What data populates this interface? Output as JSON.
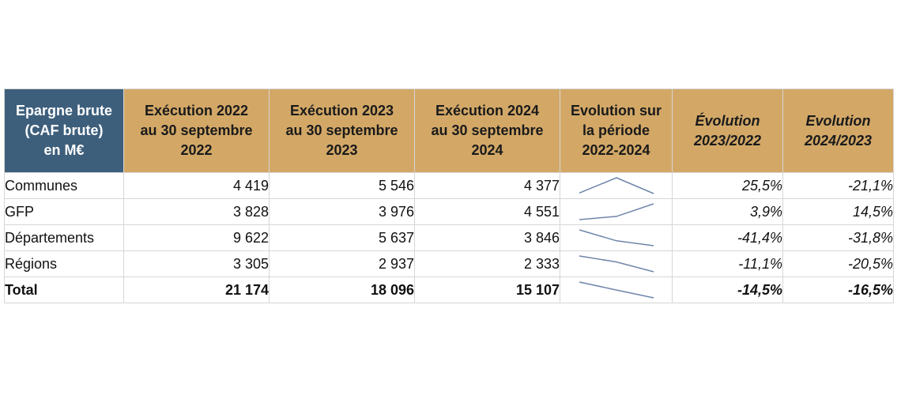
{
  "table": {
    "header_color": "#d3a867",
    "first_header_color": "#3d5f7c",
    "sparkline_color": "#6f86aa",
    "columns": [
      "Epargne brute\n(CAF brute)\nen M€",
      "Exécution 2022\nau 30 septembre\n2022",
      "Exécution 2023\nau 30 septembre\n2023",
      "Exécution 2024\nau 30 septembre\n2024",
      "Evolution sur\nla période\n2022-2024",
      "Évolution\n2023/2022",
      "Evolution\n2024/2023"
    ],
    "rows": [
      {
        "label": "Communes",
        "v2022": "4 419",
        "v2023": "5 546",
        "v2024": "4 377",
        "trend": [
          4419,
          5546,
          4377
        ],
        "evo_23_22": "25,5%",
        "evo_24_23": "-21,1%"
      },
      {
        "label": "GFP",
        "v2022": "3 828",
        "v2023": "3 976",
        "v2024": "4 551",
        "trend": [
          3828,
          3976,
          4551
        ],
        "evo_23_22": "3,9%",
        "evo_24_23": "14,5%"
      },
      {
        "label": "Départements",
        "v2022": "9 622",
        "v2023": "5 637",
        "v2024": "3 846",
        "trend": [
          9622,
          5637,
          3846
        ],
        "evo_23_22": "-41,4%",
        "evo_24_23": "-31,8%"
      },
      {
        "label": "Régions",
        "v2022": "3 305",
        "v2023": "2 937",
        "v2024": "2 333",
        "trend": [
          3305,
          2937,
          2333
        ],
        "evo_23_22": "-11,1%",
        "evo_24_23": "-20,5%"
      },
      {
        "label": "Total",
        "v2022": "21 174",
        "v2023": "18 096",
        "v2024": "15 107",
        "trend": [
          21174,
          18096,
          15107
        ],
        "evo_23_22": "-14,5%",
        "evo_24_23": "-16,5%"
      }
    ]
  }
}
